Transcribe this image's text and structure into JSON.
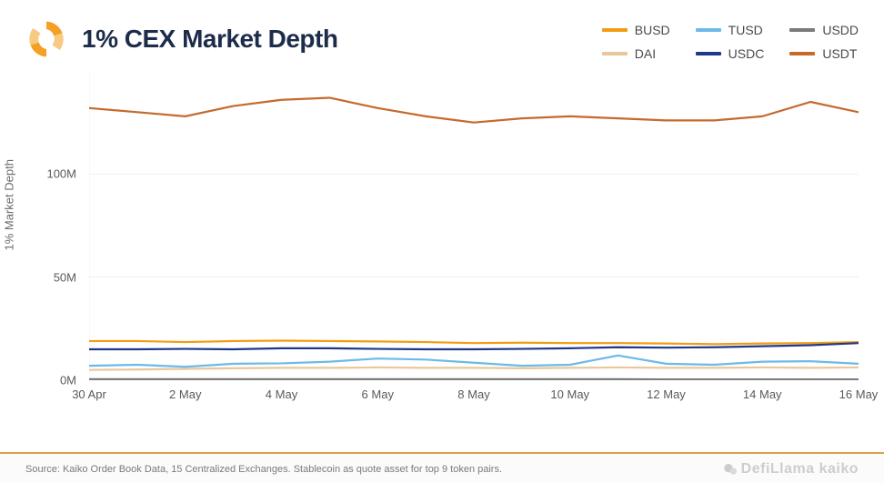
{
  "title": "1% CEX Market Depth",
  "y_axis_label": "1% Market Depth",
  "source_text": "Source: Kaiko Order Book Data, 15 Centralized Exchanges. Stablecoin as quote asset for top 9 token pairs.",
  "watermark": "DefiLlama kaiko",
  "background_color": "#ffffff",
  "grid_color": "#d0d0d0",
  "axis_color": "#7a7a7a",
  "footer_border_color": "#d8a24a",
  "title_color": "#1d2c4a",
  "logo_colors": {
    "outer": "#f4a024",
    "inner": "#f7c981"
  },
  "chart": {
    "type": "line",
    "ylim": [
      0,
      150000000
    ],
    "yticks": [
      0,
      50000000,
      100000000
    ],
    "ytick_labels": [
      "0M",
      "50M",
      "100M"
    ],
    "x_categories": [
      "30 Apr",
      "1 May",
      "2 May",
      "3 May",
      "4 May",
      "5 May",
      "6 May",
      "7 May",
      "8 May",
      "9 May",
      "10 May",
      "11 May",
      "12 May",
      "13 May",
      "14 May",
      "15 May",
      "16 May"
    ],
    "x_tick_indices": [
      0,
      2,
      4,
      6,
      8,
      10,
      12,
      14,
      16
    ],
    "x_tick_labels": [
      "30 Apr",
      "2 May",
      "4 May",
      "6 May",
      "8 May",
      "10 May",
      "12 May",
      "14 May",
      "16 May"
    ],
    "line_width": 2.2,
    "series": [
      {
        "name": "BUSD",
        "color": "#f39c12",
        "values": [
          19000000,
          19000000,
          18500000,
          19000000,
          19200000,
          19000000,
          18800000,
          18500000,
          18000000,
          18200000,
          18000000,
          18000000,
          17800000,
          17500000,
          17800000,
          18000000,
          18500000
        ]
      },
      {
        "name": "DAI",
        "color": "#e8c89a",
        "values": [
          5000000,
          5200000,
          5500000,
          5800000,
          6000000,
          6000000,
          6200000,
          6000000,
          6000000,
          5800000,
          6000000,
          6200000,
          6000000,
          6000000,
          6200000,
          6000000,
          6200000
        ]
      },
      {
        "name": "TUSD",
        "color": "#6db9e8",
        "values": [
          7000000,
          7500000,
          6500000,
          8000000,
          8200000,
          9000000,
          10500000,
          10000000,
          8500000,
          7000000,
          7500000,
          12000000,
          8000000,
          7500000,
          9000000,
          9200000,
          8000000
        ]
      },
      {
        "name": "USDC",
        "color": "#1d3a8a",
        "values": [
          15000000,
          15000000,
          15200000,
          15000000,
          15500000,
          15500000,
          15200000,
          15000000,
          15000000,
          15200000,
          15500000,
          16000000,
          15800000,
          16000000,
          16500000,
          17000000,
          18000000
        ]
      },
      {
        "name": "USDD",
        "color": "#7a7a7a",
        "values": [
          500000,
          500000,
          500000,
          500000,
          500000,
          500000,
          500000,
          500000,
          500000,
          500000,
          500000,
          500000,
          400000,
          400000,
          400000,
          400000,
          400000
        ]
      },
      {
        "name": "USDT",
        "color": "#c56a2b",
        "values": [
          132000000,
          130000000,
          128000000,
          133000000,
          136000000,
          137000000,
          132000000,
          128000000,
          125000000,
          127000000,
          128000000,
          127000000,
          126000000,
          126000000,
          128000000,
          135000000,
          130000000
        ]
      }
    ]
  },
  "legend_order": [
    "BUSD",
    "TUSD",
    "USDD",
    "DAI",
    "USDC",
    "USDT"
  ]
}
